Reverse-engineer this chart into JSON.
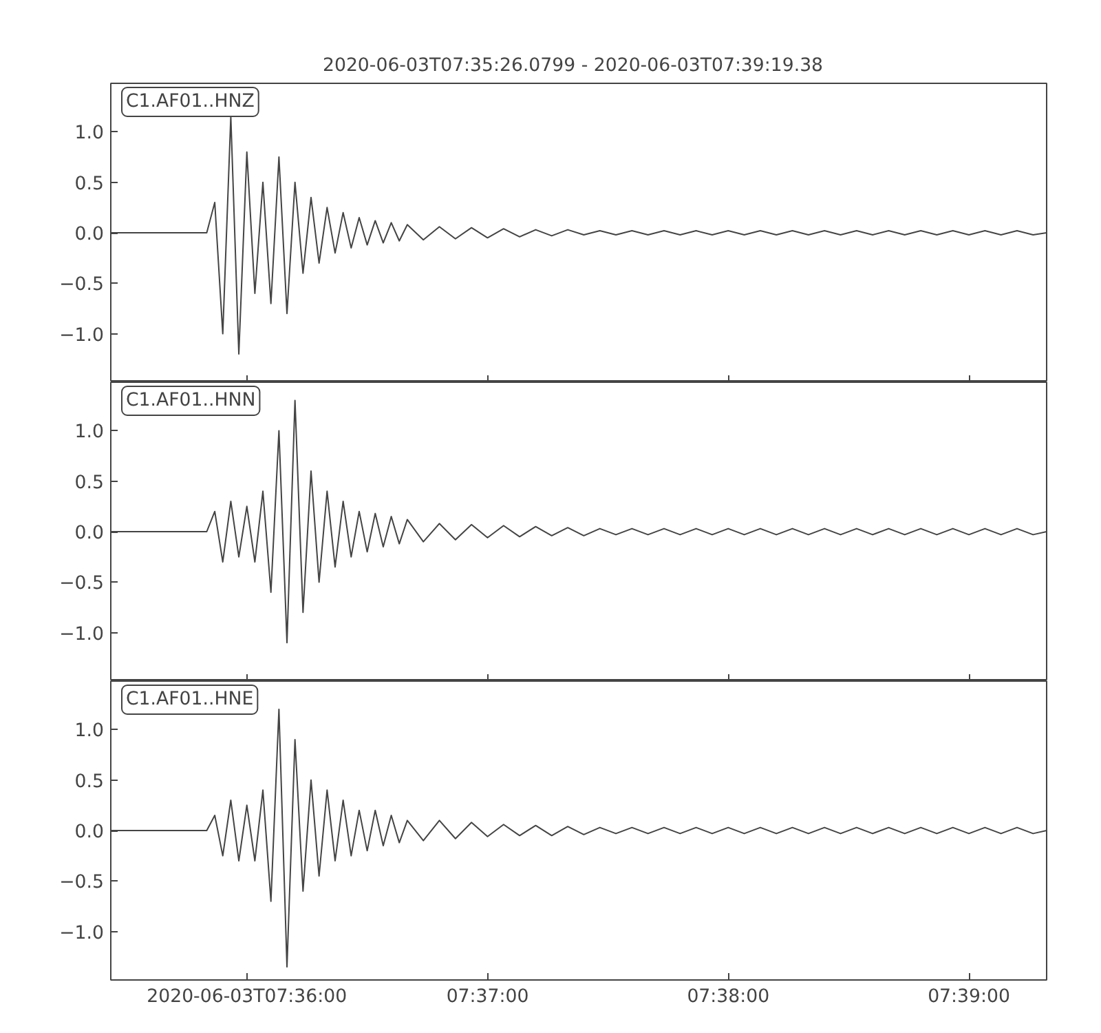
{
  "chart_data": [
    {
      "type": "line",
      "title": "2020-06-03T07:35:26.0799  -  2020-06-03T07:39:19.38",
      "annotations": [
        "C1.AF01..HNZ"
      ],
      "tick_labels": "y",
      "grid": false,
      "marker": "none",
      "line_style": "solid",
      "xlim": [
        7.590578,
        7.655383
      ],
      "xticks": [
        {
          "value": 7.6,
          "label": null
        },
        {
          "value": 7.616667,
          "label": null
        },
        {
          "value": 7.633333,
          "label": null
        },
        {
          "value": 7.65,
          "label": null
        }
      ],
      "ylim": [
        -1.48,
        1.48
      ],
      "yticks": [
        {
          "value": -1.0,
          "label": "−1.0"
        },
        {
          "value": -0.5,
          "label": "−0.5"
        },
        {
          "value": 0.0,
          "label": "0.0"
        },
        {
          "value": 0.5,
          "label": "0.5"
        },
        {
          "value": 1.0,
          "label": "1.0"
        }
      ],
      "x": [
        7.590578,
        7.597222,
        7.597778,
        7.598333,
        7.598889,
        7.599444,
        7.6,
        7.600556,
        7.601111,
        7.601667,
        7.602222,
        7.602778,
        7.603333,
        7.603889,
        7.604444,
        7.605,
        7.605556,
        7.606111,
        7.606667,
        7.607222,
        7.607778,
        7.608333,
        7.608889,
        7.609444,
        7.61,
        7.610556,
        7.611111,
        7.612222,
        7.613333,
        7.614444,
        7.615556,
        7.616667,
        7.617778,
        7.618889,
        7.62,
        7.621111,
        7.622222,
        7.623333,
        7.624444,
        7.625556,
        7.626667,
        7.627778,
        7.628889,
        7.63,
        7.631111,
        7.632222,
        7.633333,
        7.634444,
        7.635556,
        7.636667,
        7.637778,
        7.638889,
        7.64,
        7.641111,
        7.642222,
        7.643333,
        7.644444,
        7.645556,
        7.646667,
        7.647778,
        7.648889,
        7.65,
        7.651111,
        7.652222,
        7.653333,
        7.654444,
        7.655383
      ],
      "series": [
        {
          "color": "#444444",
          "values": [
            0,
            0,
            0.3,
            -1.0,
            1.15,
            -1.2,
            0.8,
            -0.6,
            0.5,
            -0.7,
            0.75,
            -0.8,
            0.5,
            -0.4,
            0.35,
            -0.3,
            0.25,
            -0.2,
            0.2,
            -0.15,
            0.15,
            -0.12,
            0.12,
            -0.1,
            0.1,
            -0.08,
            0.08,
            -0.07,
            0.06,
            -0.06,
            0.05,
            -0.05,
            0.04,
            -0.04,
            0.03,
            -0.03,
            0.03,
            -0.02,
            0.02,
            -0.02,
            0.02,
            -0.02,
            0.02,
            -0.02,
            0.02,
            -0.02,
            0.02,
            -0.02,
            0.02,
            -0.02,
            0.02,
            -0.02,
            0.02,
            -0.02,
            0.02,
            -0.02,
            0.02,
            -0.02,
            0.02,
            -0.02,
            0.02,
            -0.02,
            0.02,
            -0.02,
            0.02,
            -0.02,
            0
          ]
        }
      ]
    },
    {
      "type": "line",
      "annotations": [
        "C1.AF01..HNN"
      ],
      "tick_labels": "y",
      "grid": false,
      "marker": "none",
      "line_style": "solid",
      "xlim": [
        7.590578,
        7.655383
      ],
      "xticks": [
        {
          "value": 7.6,
          "label": null
        },
        {
          "value": 7.616667,
          "label": null
        },
        {
          "value": 7.633333,
          "label": null
        },
        {
          "value": 7.65,
          "label": null
        }
      ],
      "ylim": [
        -1.48,
        1.48
      ],
      "yticks": [
        {
          "value": -1.0,
          "label": "−1.0"
        },
        {
          "value": -0.5,
          "label": "−0.5"
        },
        {
          "value": 0.0,
          "label": "0.0"
        },
        {
          "value": 0.5,
          "label": "0.5"
        },
        {
          "value": 1.0,
          "label": "1.0"
        }
      ],
      "x": [
        7.590578,
        7.597222,
        7.597778,
        7.598333,
        7.598889,
        7.599444,
        7.6,
        7.600556,
        7.601111,
        7.601667,
        7.602222,
        7.602778,
        7.603333,
        7.603889,
        7.604444,
        7.605,
        7.605556,
        7.606111,
        7.606667,
        7.607222,
        7.607778,
        7.608333,
        7.608889,
        7.609444,
        7.61,
        7.610556,
        7.611111,
        7.612222,
        7.613333,
        7.614444,
        7.615556,
        7.616667,
        7.617778,
        7.618889,
        7.62,
        7.621111,
        7.622222,
        7.623333,
        7.624444,
        7.625556,
        7.626667,
        7.627778,
        7.628889,
        7.63,
        7.631111,
        7.632222,
        7.633333,
        7.634444,
        7.635556,
        7.636667,
        7.637778,
        7.638889,
        7.64,
        7.641111,
        7.642222,
        7.643333,
        7.644444,
        7.645556,
        7.646667,
        7.647778,
        7.648889,
        7.65,
        7.651111,
        7.652222,
        7.653333,
        7.654444,
        7.655383
      ],
      "series": [
        {
          "color": "#444444",
          "values": [
            0,
            0,
            0.2,
            -0.3,
            0.3,
            -0.25,
            0.25,
            -0.3,
            0.4,
            -0.6,
            1.0,
            -1.1,
            1.3,
            -0.8,
            0.6,
            -0.5,
            0.4,
            -0.35,
            0.3,
            -0.25,
            0.2,
            -0.2,
            0.18,
            -0.15,
            0.15,
            -0.12,
            0.12,
            -0.1,
            0.08,
            -0.08,
            0.07,
            -0.06,
            0.06,
            -0.05,
            0.05,
            -0.04,
            0.04,
            -0.04,
            0.03,
            -0.03,
            0.03,
            -0.03,
            0.03,
            -0.03,
            0.03,
            -0.03,
            0.03,
            -0.03,
            0.03,
            -0.03,
            0.03,
            -0.03,
            0.03,
            -0.03,
            0.03,
            -0.03,
            0.03,
            -0.03,
            0.03,
            -0.03,
            0.03,
            -0.03,
            0.03,
            -0.03,
            0.03,
            -0.03,
            0
          ]
        }
      ]
    },
    {
      "type": "line",
      "annotations": [
        "C1.AF01..HNE"
      ],
      "grid": false,
      "marker": "none",
      "line_style": "solid",
      "xlim": [
        7.590578,
        7.655383
      ],
      "xticks": [
        {
          "value": 7.6,
          "label": "2020-06-03T07:36:00"
        },
        {
          "value": 7.616667,
          "label": "07:37:00"
        },
        {
          "value": 7.633333,
          "label": "07:38:00"
        },
        {
          "value": 7.65,
          "label": "07:39:00"
        }
      ],
      "ylim": [
        -1.48,
        1.48
      ],
      "yticks": [
        {
          "value": -1.0,
          "label": "−1.0"
        },
        {
          "value": -0.5,
          "label": "−0.5"
        },
        {
          "value": 0.0,
          "label": "0.0"
        },
        {
          "value": 0.5,
          "label": "0.5"
        },
        {
          "value": 1.0,
          "label": "1.0"
        }
      ],
      "x": [
        7.590578,
        7.597222,
        7.597778,
        7.598333,
        7.598889,
        7.599444,
        7.6,
        7.600556,
        7.601111,
        7.601667,
        7.602222,
        7.602778,
        7.603333,
        7.603889,
        7.604444,
        7.605,
        7.605556,
        7.606111,
        7.606667,
        7.607222,
        7.607778,
        7.608333,
        7.608889,
        7.609444,
        7.61,
        7.610556,
        7.611111,
        7.612222,
        7.613333,
        7.614444,
        7.615556,
        7.616667,
        7.617778,
        7.618889,
        7.62,
        7.621111,
        7.622222,
        7.623333,
        7.624444,
        7.625556,
        7.626667,
        7.627778,
        7.628889,
        7.63,
        7.631111,
        7.632222,
        7.633333,
        7.634444,
        7.635556,
        7.636667,
        7.637778,
        7.638889,
        7.64,
        7.641111,
        7.642222,
        7.643333,
        7.644444,
        7.645556,
        7.646667,
        7.647778,
        7.648889,
        7.65,
        7.651111,
        7.652222,
        7.653333,
        7.654444,
        7.655383
      ],
      "series": [
        {
          "color": "#444444",
          "values": [
            0,
            0,
            0.15,
            -0.25,
            0.3,
            -0.3,
            0.25,
            -0.3,
            0.4,
            -0.7,
            1.2,
            -1.35,
            0.9,
            -0.6,
            0.5,
            -0.45,
            0.4,
            -0.3,
            0.3,
            -0.25,
            0.2,
            -0.2,
            0.2,
            -0.15,
            0.15,
            -0.12,
            0.1,
            -0.1,
            0.1,
            -0.08,
            0.08,
            -0.06,
            0.06,
            -0.05,
            0.05,
            -0.05,
            0.04,
            -0.04,
            0.03,
            -0.03,
            0.03,
            -0.03,
            0.03,
            -0.03,
            0.03,
            -0.03,
            0.03,
            -0.03,
            0.03,
            -0.03,
            0.03,
            -0.03,
            0.03,
            -0.03,
            0.03,
            -0.03,
            0.03,
            -0.03,
            0.03,
            -0.03,
            0.03,
            -0.03,
            0.03,
            -0.03,
            0.03,
            -0.03,
            0
          ]
        }
      ]
    }
  ]
}
